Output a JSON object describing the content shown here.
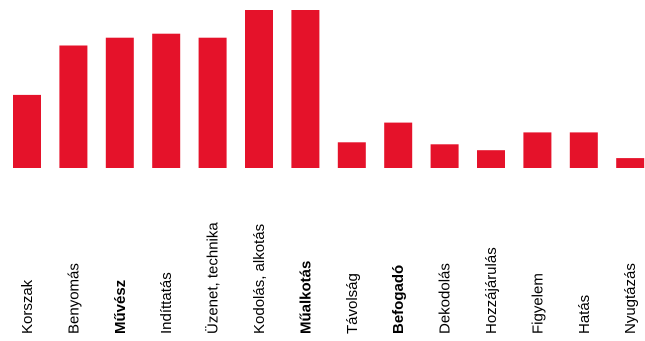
{
  "chart_data": {
    "type": "bar",
    "categories": [
      "Korszak",
      "Benyomás",
      "Művész",
      "Indíttatás",
      "Üzenet, technika",
      "Kodolás, alkotás",
      "Műalkotás",
      "Távolság",
      "Befogadó",
      "Dekodolás",
      "Hozzájárulás",
      "Figyelem",
      "Hatás",
      "Nyugtázás"
    ],
    "values": [
      37,
      62,
      66,
      68,
      66,
      80,
      80,
      13,
      23,
      12,
      9,
      18,
      18,
      5
    ],
    "bold_categories": [
      "Művész",
      "Műalkotás",
      "Befogadó"
    ],
    "ylim": [
      0,
      80
    ],
    "grid": false,
    "legend": "none",
    "bar_color": "#e5122a",
    "label_color": "#000000"
  }
}
